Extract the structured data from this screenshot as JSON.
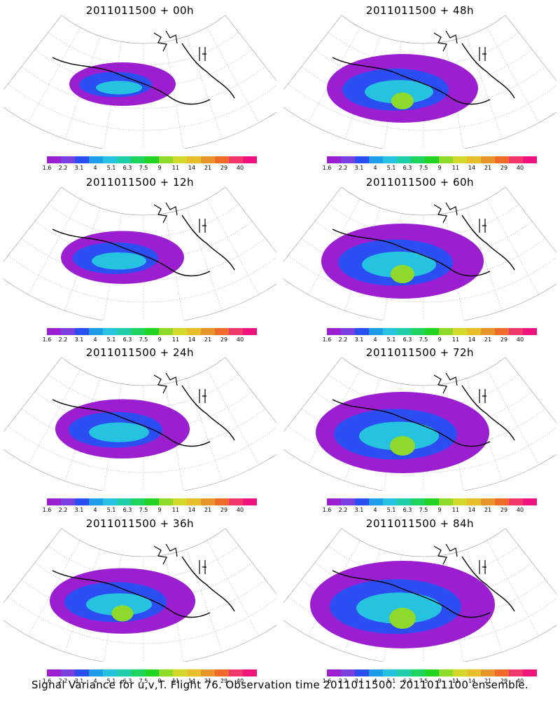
{
  "panels": [
    {
      "title": "2011011500 + 00h",
      "intensity": 0.2
    },
    {
      "title": "2011011500 + 48h",
      "intensity": 0.6
    },
    {
      "title": "2011011500 + 12h",
      "intensity": 0.35
    },
    {
      "title": "2011011500 + 60h",
      "intensity": 0.7
    },
    {
      "title": "2011011500 + 24h",
      "intensity": 0.45
    },
    {
      "title": "2011011500 + 72h",
      "intensity": 0.8
    },
    {
      "title": "2011011500 + 36h",
      "intensity": 0.55
    },
    {
      "title": "2011011500 + 84h",
      "intensity": 0.9
    }
  ],
  "colorbar": {
    "colors": [
      "#9b1fd1",
      "#7b3fe0",
      "#2b4ef2",
      "#1e9be8",
      "#26c3e0",
      "#20cfa9",
      "#1fd35f",
      "#22d322",
      "#8fd92c",
      "#d2d92a",
      "#e7be2b",
      "#e8952b",
      "#ef6b2c",
      "#f0386a",
      "#f0137d"
    ],
    "labels": [
      "1.6",
      "2.2",
      "3.1",
      "4",
      "5.1",
      "6.3",
      "7.5",
      "9",
      "11",
      "14",
      "21",
      "29",
      "40"
    ]
  },
  "caption": "Signal Variance for u,v,T. Flight 76. Observation time 2011011500. 2011011100 ensemble."
}
